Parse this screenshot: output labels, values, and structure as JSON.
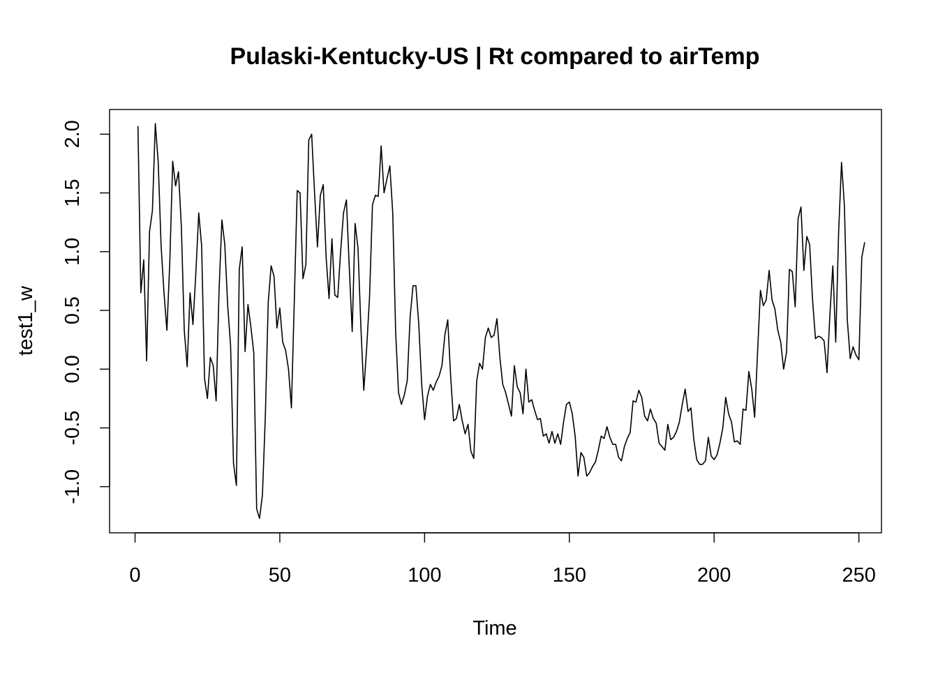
{
  "chart_data": {
    "type": "line",
    "title": "Pulaski-Kentucky-US | Rt compared to airTemp",
    "xlabel": "Time",
    "ylabel": "test1_w",
    "xlim": [
      -8.8,
      257.8
    ],
    "ylim": [
      -1.393,
      2.21
    ],
    "x_ticks": [
      0,
      50,
      100,
      150,
      200,
      250
    ],
    "x_tick_labels": [
      "0",
      "50",
      "100",
      "150",
      "200",
      "250"
    ],
    "y_ticks": [
      -1.0,
      -0.5,
      0.0,
      0.5,
      1.0,
      1.5,
      2.0
    ],
    "y_tick_labels": [
      "-1.0",
      "-0.5",
      "0.0",
      "0.5",
      "1.0",
      "1.5",
      "2.0"
    ],
    "grid": false,
    "line_color": "#000000",
    "series": [
      {
        "x_start": 1,
        "values": [
          2.07,
          0.65,
          0.93,
          0.07,
          1.17,
          1.35,
          2.09,
          1.76,
          1.05,
          0.65,
          0.33,
          0.91,
          1.77,
          1.56,
          1.68,
          1.21,
          0.33,
          0.02,
          0.65,
          0.38,
          0.82,
          1.33,
          1.05,
          -0.08,
          -0.25,
          0.1,
          0.03,
          -0.27,
          0.66,
          1.27,
          1.06,
          0.54,
          0.2,
          -0.8,
          -0.99,
          0.85,
          1.04,
          0.15,
          0.55,
          0.36,
          0.14,
          -1.19,
          -1.27,
          -1.07,
          -0.4,
          0.57,
          0.88,
          0.79,
          0.35,
          0.52,
          0.23,
          0.16,
          0.0,
          -0.33,
          0.58,
          1.52,
          1.5,
          0.77,
          0.89,
          1.95,
          2.0,
          1.5,
          1.04,
          1.48,
          1.57,
          0.95,
          0.6,
          1.11,
          0.63,
          0.61,
          1.0,
          1.33,
          1.44,
          0.86,
          0.32,
          1.24,
          1.03,
          0.36,
          -0.18,
          0.18,
          0.62,
          1.4,
          1.48,
          1.47,
          1.9,
          1.5,
          1.62,
          1.73,
          1.33,
          0.32,
          -0.2,
          -0.3,
          -0.22,
          -0.1,
          0.44,
          0.71,
          0.71,
          0.38,
          -0.13,
          -0.43,
          -0.23,
          -0.13,
          -0.18,
          -0.11,
          -0.06,
          0.03,
          0.29,
          0.42,
          -0.06,
          -0.44,
          -0.42,
          -0.3,
          -0.44,
          -0.55,
          -0.47,
          -0.7,
          -0.76,
          -0.1,
          0.05,
          0.0,
          0.27,
          0.35,
          0.27,
          0.29,
          0.43,
          0.1,
          -0.13,
          -0.2,
          -0.3,
          -0.4,
          0.03,
          -0.15,
          -0.2,
          -0.38,
          0.0,
          -0.28,
          -0.26,
          -0.35,
          -0.43,
          -0.42,
          -0.57,
          -0.55,
          -0.63,
          -0.53,
          -0.63,
          -0.55,
          -0.64,
          -0.45,
          -0.3,
          -0.28,
          -0.38,
          -0.57,
          -0.91,
          -0.71,
          -0.75,
          -0.91,
          -0.88,
          -0.83,
          -0.79,
          -0.69,
          -0.57,
          -0.59,
          -0.49,
          -0.58,
          -0.64,
          -0.64,
          -0.75,
          -0.78,
          -0.66,
          -0.59,
          -0.54,
          -0.27,
          -0.28,
          -0.18,
          -0.24,
          -0.4,
          -0.44,
          -0.34,
          -0.42,
          -0.46,
          -0.63,
          -0.66,
          -0.69,
          -0.47,
          -0.6,
          -0.58,
          -0.53,
          -0.45,
          -0.3,
          -0.17,
          -0.36,
          -0.33,
          -0.6,
          -0.77,
          -0.81,
          -0.81,
          -0.78,
          -0.58,
          -0.74,
          -0.77,
          -0.73,
          -0.63,
          -0.5,
          -0.24,
          -0.38,
          -0.45,
          -0.62,
          -0.61,
          -0.64,
          -0.34,
          -0.35,
          -0.02,
          -0.17,
          -0.41,
          0.14,
          0.67,
          0.54,
          0.59,
          0.84,
          0.59,
          0.51,
          0.33,
          0.23,
          0.0,
          0.14,
          0.85,
          0.83,
          0.53,
          1.28,
          1.38,
          0.84,
          1.13,
          1.06,
          0.59,
          0.26,
          0.28,
          0.27,
          0.24,
          -0.03,
          0.47,
          0.88,
          0.23,
          1.16,
          1.76,
          1.39,
          0.42,
          0.09,
          0.19,
          0.12,
          0.08,
          0.95,
          1.08
        ]
      }
    ]
  }
}
